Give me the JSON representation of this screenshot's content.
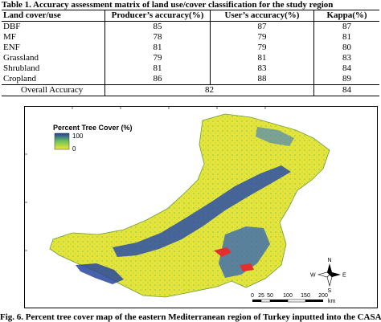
{
  "table_caption": "Table 1. Accuracy assessment matrix of land use/cover classification for the study region",
  "table": {
    "headers": [
      "Land cover/use",
      "Producer’s accuracy(%)",
      "User’s accuracy(%)",
      "Kappa(%)"
    ],
    "rows": [
      {
        "class": "DBF",
        "producer": "85",
        "user": "87",
        "kappa": "87"
      },
      {
        "class": "MF",
        "producer": "78",
        "user": "79",
        "kappa": "81"
      },
      {
        "class": "ENF",
        "producer": "81",
        "user": "79",
        "kappa": "80"
      },
      {
        "class": "Grassland",
        "producer": "79",
        "user": "81",
        "kappa": "83"
      },
      {
        "class": "Shrubland",
        "producer": "81",
        "user": "83",
        "kappa": "84"
      },
      {
        "class": "Cropland",
        "producer": "86",
        "user": "88",
        "kappa": "89"
      }
    ],
    "overall": {
      "label": "Overall Accuracy",
      "producer_user": "82",
      "kappa": "84"
    }
  },
  "map": {
    "legend_title": "Percent Tree Cover (%)",
    "legend_max": "100",
    "legend_min": "0",
    "scale_labels": [
      "0",
      "25",
      "50",
      "100",
      "150",
      "200"
    ],
    "scale_unit": "km",
    "compass_labels": [
      "N",
      "S",
      "E",
      "W"
    ],
    "colors": {
      "low": "#f0e837",
      "mid": "#6fc35a",
      "high": "#1f3fa0",
      "water": "#e23030"
    }
  },
  "figure_caption": "Fig. 6. Percent tree cover map of the eastern Mediterranean region of Turkey inputted into the CASA"
}
